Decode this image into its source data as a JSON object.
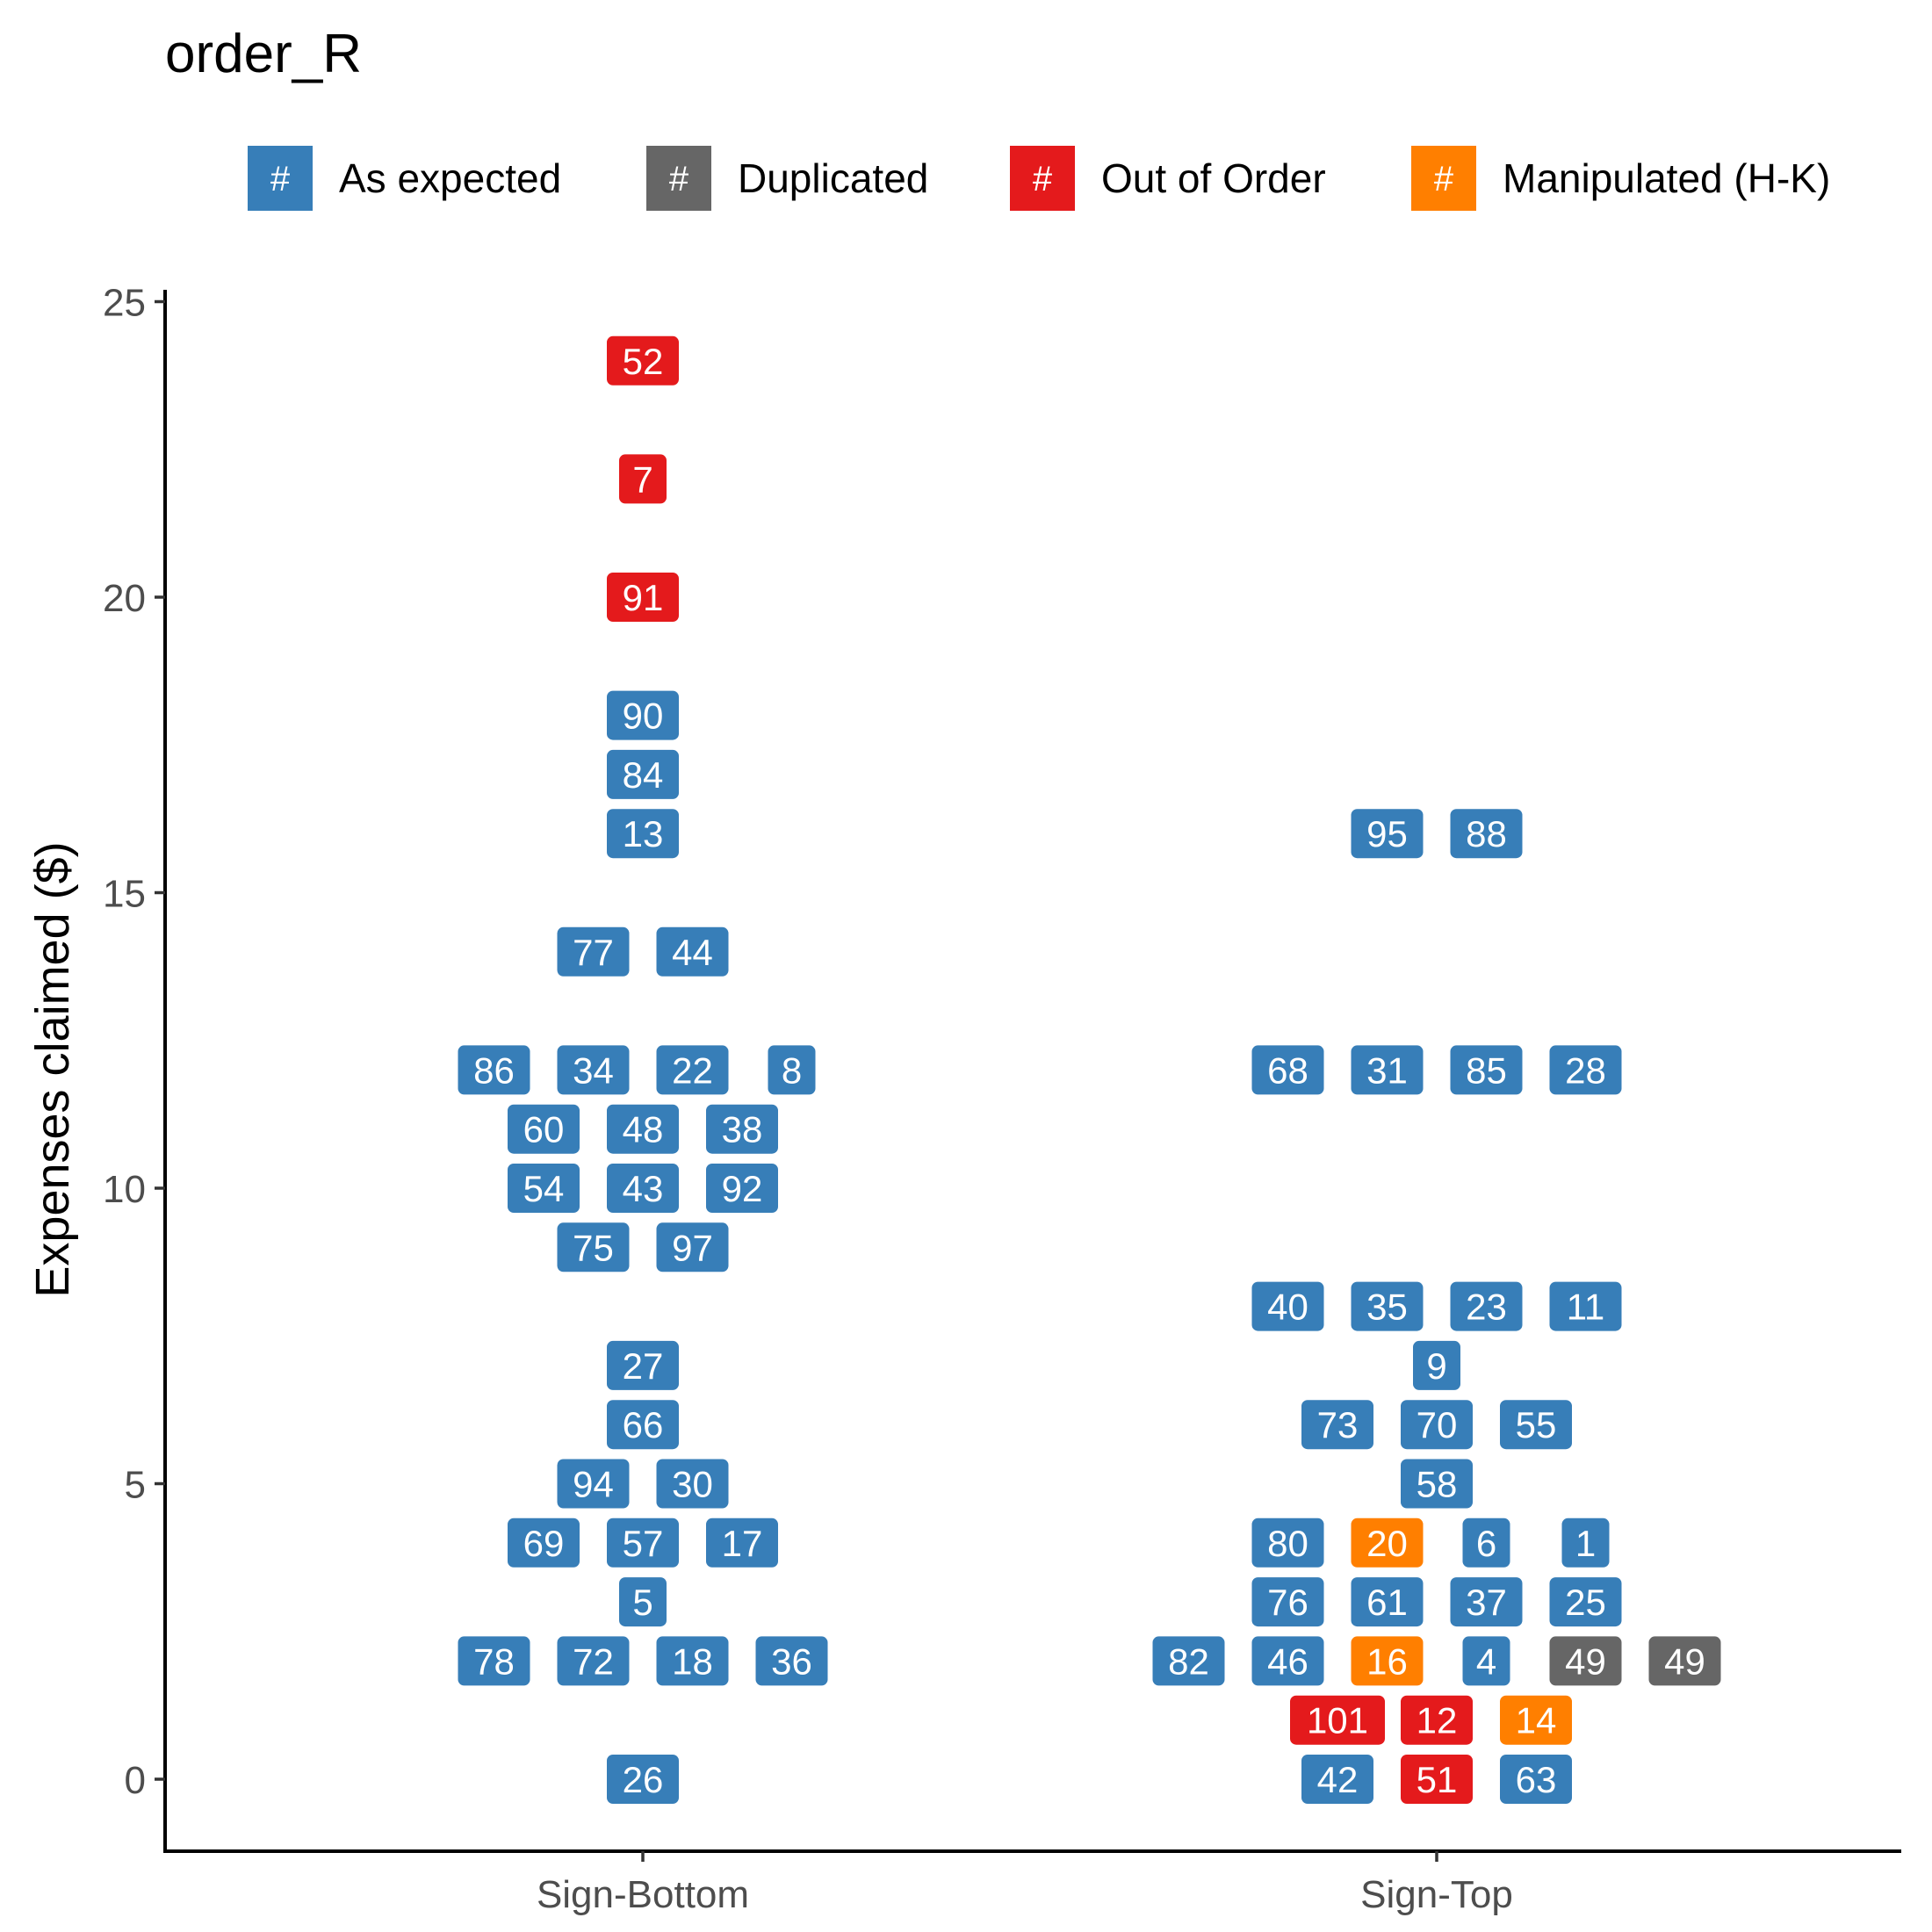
{
  "chart_data": {
    "type": "scatter",
    "title": "order_R",
    "xlabel": "",
    "ylabel": "Expenses claimed ($)",
    "categories": [
      "Sign-Bottom",
      "Sign-Top"
    ],
    "ylim": [
      -1.2,
      25.2
    ],
    "yticks": [
      0,
      5,
      10,
      15,
      20,
      25
    ],
    "grid": false,
    "legend_position": "top",
    "legend": [
      {
        "key": "As expected",
        "label": "As expected",
        "swatch_text": "#",
        "color": "#377EB8"
      },
      {
        "key": "Duplicated",
        "label": "Duplicated",
        "swatch_text": "#",
        "color": "#666666"
      },
      {
        "key": "Out of Order",
        "label": "Out of Order",
        "swatch_text": "#",
        "color": "#E41A1C"
      },
      {
        "key": "Manipulated (H-K)",
        "label": "Manipulated (H-K)",
        "swatch_text": "#",
        "color": "#FF7F00"
      }
    ],
    "points": [
      {
        "x": "Sign-Bottom",
        "y": 24,
        "slot": 0,
        "label": "52",
        "status": "Out of Order"
      },
      {
        "x": "Sign-Bottom",
        "y": 22,
        "slot": 0,
        "label": "7",
        "status": "Out of Order"
      },
      {
        "x": "Sign-Bottom",
        "y": 20,
        "slot": 0,
        "label": "91",
        "status": "Out of Order"
      },
      {
        "x": "Sign-Bottom",
        "y": 18,
        "slot": 0,
        "label": "90",
        "status": "As expected"
      },
      {
        "x": "Sign-Bottom",
        "y": 17,
        "slot": 0,
        "label": "84",
        "status": "As expected"
      },
      {
        "x": "Sign-Bottom",
        "y": 16,
        "slot": 0,
        "label": "13",
        "status": "As expected"
      },
      {
        "x": "Sign-Bottom",
        "y": 14,
        "slot": -0.5,
        "label": "77",
        "status": "As expected"
      },
      {
        "x": "Sign-Bottom",
        "y": 14,
        "slot": 0.5,
        "label": "44",
        "status": "As expected"
      },
      {
        "x": "Sign-Bottom",
        "y": 12,
        "slot": -1.5,
        "label": "86",
        "status": "As expected"
      },
      {
        "x": "Sign-Bottom",
        "y": 12,
        "slot": -0.5,
        "label": "34",
        "status": "As expected"
      },
      {
        "x": "Sign-Bottom",
        "y": 12,
        "slot": 0.5,
        "label": "22",
        "status": "As expected"
      },
      {
        "x": "Sign-Bottom",
        "y": 12,
        "slot": 1.5,
        "label": "8",
        "status": "As expected"
      },
      {
        "x": "Sign-Bottom",
        "y": 11,
        "slot": -1,
        "label": "60",
        "status": "As expected"
      },
      {
        "x": "Sign-Bottom",
        "y": 11,
        "slot": 0,
        "label": "48",
        "status": "As expected"
      },
      {
        "x": "Sign-Bottom",
        "y": 11,
        "slot": 1,
        "label": "38",
        "status": "As expected"
      },
      {
        "x": "Sign-Bottom",
        "y": 10,
        "slot": -1,
        "label": "54",
        "status": "As expected"
      },
      {
        "x": "Sign-Bottom",
        "y": 10,
        "slot": 0,
        "label": "43",
        "status": "As expected"
      },
      {
        "x": "Sign-Bottom",
        "y": 10,
        "slot": 1,
        "label": "92",
        "status": "As expected"
      },
      {
        "x": "Sign-Bottom",
        "y": 9,
        "slot": -0.5,
        "label": "75",
        "status": "As expected"
      },
      {
        "x": "Sign-Bottom",
        "y": 9,
        "slot": 0.5,
        "label": "97",
        "status": "As expected"
      },
      {
        "x": "Sign-Bottom",
        "y": 7,
        "slot": 0,
        "label": "27",
        "status": "As expected"
      },
      {
        "x": "Sign-Bottom",
        "y": 6,
        "slot": 0,
        "label": "66",
        "status": "As expected"
      },
      {
        "x": "Sign-Bottom",
        "y": 5,
        "slot": -0.5,
        "label": "94",
        "status": "As expected"
      },
      {
        "x": "Sign-Bottom",
        "y": 5,
        "slot": 0.5,
        "label": "30",
        "status": "As expected"
      },
      {
        "x": "Sign-Bottom",
        "y": 4,
        "slot": -1,
        "label": "69",
        "status": "As expected"
      },
      {
        "x": "Sign-Bottom",
        "y": 4,
        "slot": 0,
        "label": "57",
        "status": "As expected"
      },
      {
        "x": "Sign-Bottom",
        "y": 4,
        "slot": 1,
        "label": "17",
        "status": "As expected"
      },
      {
        "x": "Sign-Bottom",
        "y": 3,
        "slot": 0,
        "label": "5",
        "status": "As expected"
      },
      {
        "x": "Sign-Bottom",
        "y": 2,
        "slot": -1.5,
        "label": "78",
        "status": "As expected"
      },
      {
        "x": "Sign-Bottom",
        "y": 2,
        "slot": -0.5,
        "label": "72",
        "status": "As expected"
      },
      {
        "x": "Sign-Bottom",
        "y": 2,
        "slot": 0.5,
        "label": "18",
        "status": "As expected"
      },
      {
        "x": "Sign-Bottom",
        "y": 2,
        "slot": 1.5,
        "label": "36",
        "status": "As expected"
      },
      {
        "x": "Sign-Bottom",
        "y": 0,
        "slot": 0,
        "label": "26",
        "status": "As expected"
      },
      {
        "x": "Sign-Top",
        "y": 16,
        "slot": -0.5,
        "label": "95",
        "status": "As expected"
      },
      {
        "x": "Sign-Top",
        "y": 16,
        "slot": 0.5,
        "label": "88",
        "status": "As expected"
      },
      {
        "x": "Sign-Top",
        "y": 12,
        "slot": -1.5,
        "label": "68",
        "status": "As expected"
      },
      {
        "x": "Sign-Top",
        "y": 12,
        "slot": -0.5,
        "label": "31",
        "status": "As expected"
      },
      {
        "x": "Sign-Top",
        "y": 12,
        "slot": 0.5,
        "label": "85",
        "status": "As expected"
      },
      {
        "x": "Sign-Top",
        "y": 12,
        "slot": 1.5,
        "label": "28",
        "status": "As expected"
      },
      {
        "x": "Sign-Top",
        "y": 8,
        "slot": -1.5,
        "label": "40",
        "status": "As expected"
      },
      {
        "x": "Sign-Top",
        "y": 8,
        "slot": -0.5,
        "label": "35",
        "status": "As expected"
      },
      {
        "x": "Sign-Top",
        "y": 8,
        "slot": 0.5,
        "label": "23",
        "status": "As expected"
      },
      {
        "x": "Sign-Top",
        "y": 8,
        "slot": 1.5,
        "label": "11",
        "status": "As expected"
      },
      {
        "x": "Sign-Top",
        "y": 7,
        "slot": 0,
        "label": "9",
        "status": "As expected"
      },
      {
        "x": "Sign-Top",
        "y": 6,
        "slot": -1,
        "label": "73",
        "status": "As expected"
      },
      {
        "x": "Sign-Top",
        "y": 6,
        "slot": 0,
        "label": "70",
        "status": "As expected"
      },
      {
        "x": "Sign-Top",
        "y": 6,
        "slot": 1,
        "label": "55",
        "status": "As expected"
      },
      {
        "x": "Sign-Top",
        "y": 5,
        "slot": 0,
        "label": "58",
        "status": "As expected"
      },
      {
        "x": "Sign-Top",
        "y": 4,
        "slot": -1.5,
        "label": "80",
        "status": "As expected"
      },
      {
        "x": "Sign-Top",
        "y": 4,
        "slot": -0.5,
        "label": "20",
        "status": "Manipulated (H-K)"
      },
      {
        "x": "Sign-Top",
        "y": 4,
        "slot": 0.5,
        "label": "6",
        "status": "As expected"
      },
      {
        "x": "Sign-Top",
        "y": 4,
        "slot": 1.5,
        "label": "1",
        "status": "As expected"
      },
      {
        "x": "Sign-Top",
        "y": 3,
        "slot": -1.5,
        "label": "76",
        "status": "As expected"
      },
      {
        "x": "Sign-Top",
        "y": 3,
        "slot": -0.5,
        "label": "61",
        "status": "As expected"
      },
      {
        "x": "Sign-Top",
        "y": 3,
        "slot": 0.5,
        "label": "37",
        "status": "As expected"
      },
      {
        "x": "Sign-Top",
        "y": 3,
        "slot": 1.5,
        "label": "25",
        "status": "As expected"
      },
      {
        "x": "Sign-Top",
        "y": 2,
        "slot": -2.5,
        "label": "82",
        "status": "As expected"
      },
      {
        "x": "Sign-Top",
        "y": 2,
        "slot": -1.5,
        "label": "46",
        "status": "As expected"
      },
      {
        "x": "Sign-Top",
        "y": 2,
        "slot": -0.5,
        "label": "16",
        "status": "Manipulated (H-K)"
      },
      {
        "x": "Sign-Top",
        "y": 2,
        "slot": 0.5,
        "label": "4",
        "status": "As expected"
      },
      {
        "x": "Sign-Top",
        "y": 2,
        "slot": 1.5,
        "label": "49",
        "status": "Duplicated"
      },
      {
        "x": "Sign-Top",
        "y": 2,
        "slot": 2.5,
        "label": "49",
        "status": "Duplicated"
      },
      {
        "x": "Sign-Top",
        "y": 1,
        "slot": -1,
        "label": "101",
        "status": "Out of Order"
      },
      {
        "x": "Sign-Top",
        "y": 1,
        "slot": 0,
        "label": "12",
        "status": "Out of Order"
      },
      {
        "x": "Sign-Top",
        "y": 1,
        "slot": 1,
        "label": "14",
        "status": "Manipulated (H-K)"
      },
      {
        "x": "Sign-Top",
        "y": 0,
        "slot": -1,
        "label": "42",
        "status": "As expected"
      },
      {
        "x": "Sign-Top",
        "y": 0,
        "slot": 0,
        "label": "51",
        "status": "Out of Order"
      },
      {
        "x": "Sign-Top",
        "y": 0,
        "slot": 1,
        "label": "63",
        "status": "As expected"
      }
    ]
  }
}
